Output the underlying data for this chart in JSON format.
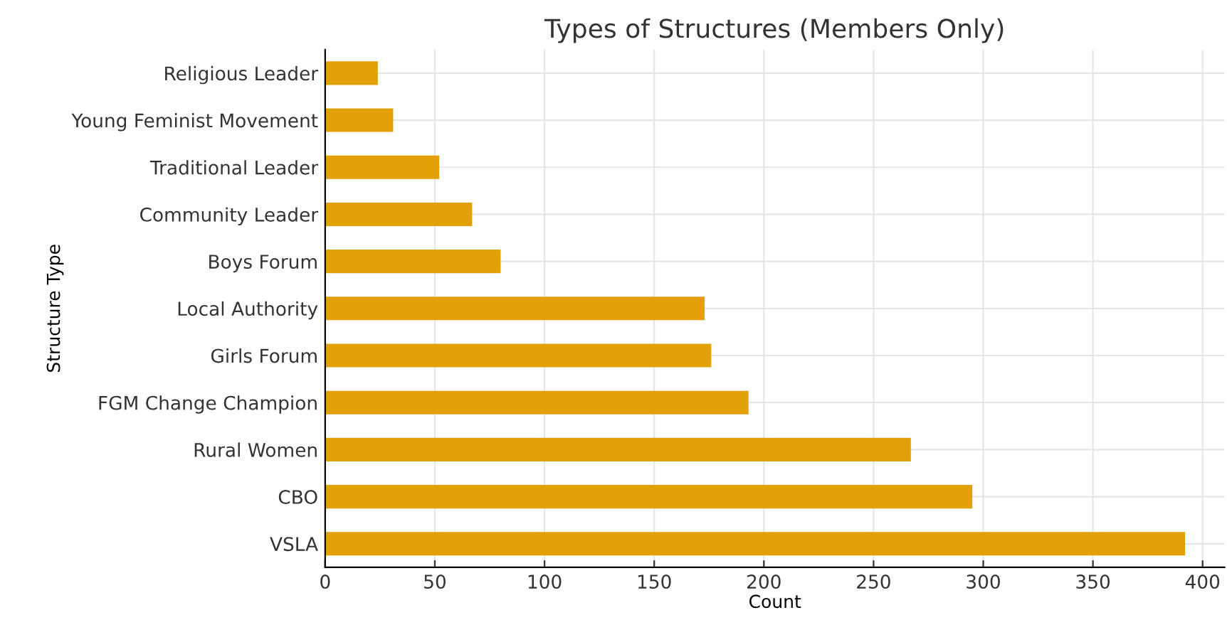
{
  "chart_data": {
    "type": "bar",
    "orientation": "horizontal",
    "title": "Types of Structures (Members Only)",
    "xlabel": "Count",
    "ylabel": "Structure Type",
    "categories": [
      "Religious Leader",
      "Young Feminist Movement",
      "Traditional Leader",
      "Community Leader",
      "Boys Forum",
      "Local Authority",
      "Girls Forum",
      "FGM Change Champion",
      "Rural Women",
      "CBO",
      "VSLA"
    ],
    "values": [
      24,
      31,
      52,
      67,
      80,
      173,
      176,
      193,
      267,
      295,
      392
    ],
    "color": "#e3a008",
    "xlim": [
      0,
      410
    ],
    "xticks": [
      0,
      50,
      100,
      150,
      200,
      250,
      300,
      350,
      400
    ],
    "grid": true,
    "legend": false
  }
}
